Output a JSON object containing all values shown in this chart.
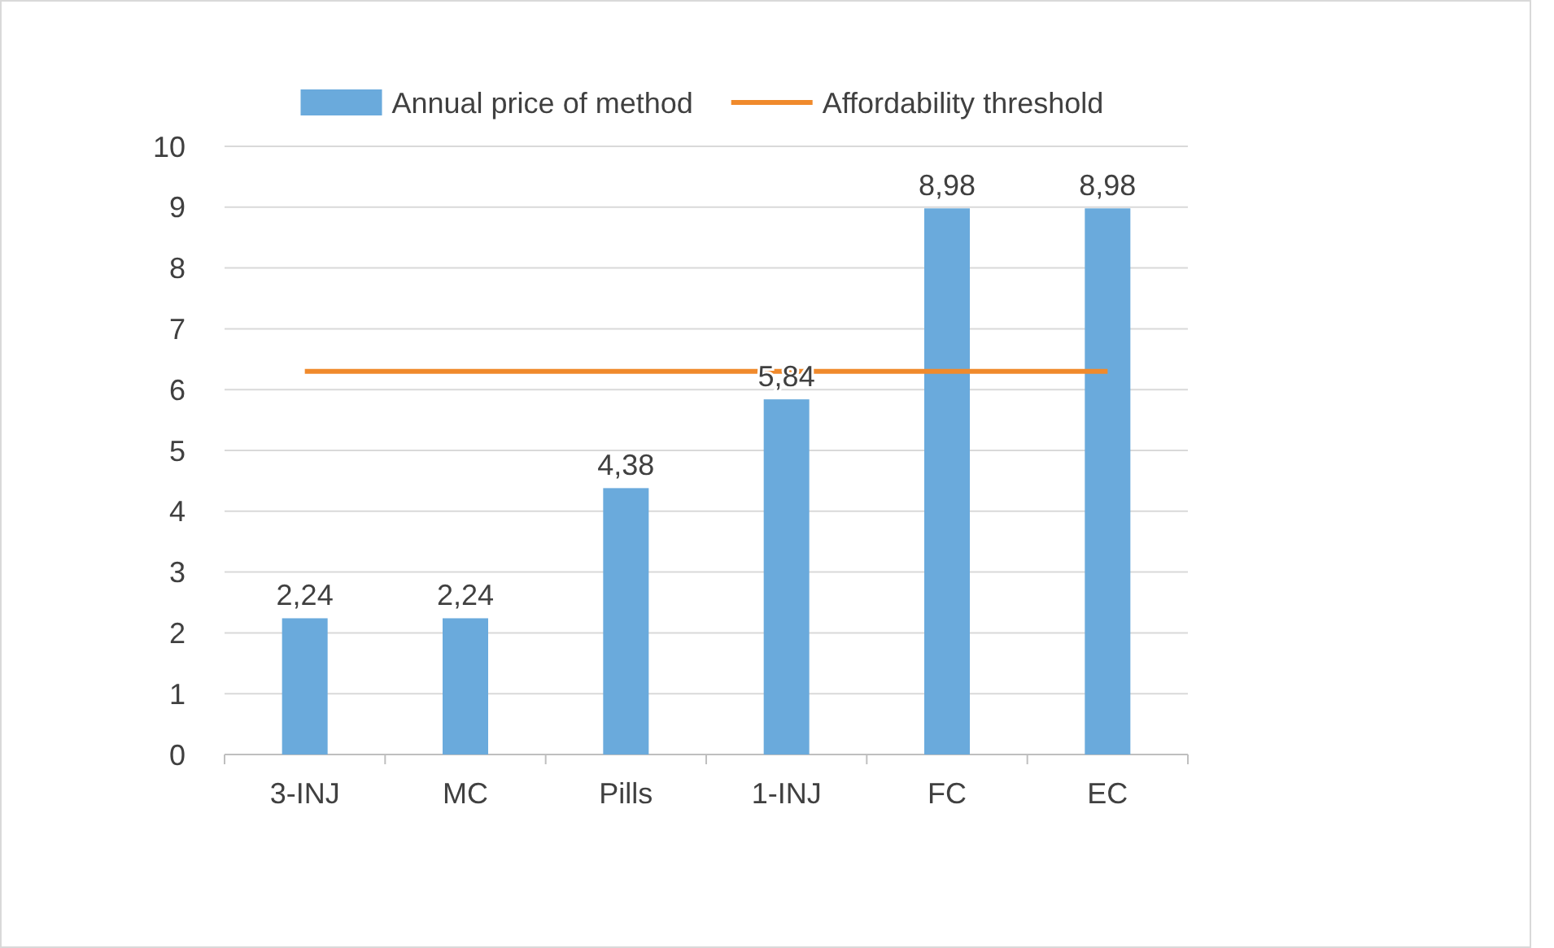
{
  "chart_data": {
    "type": "bar",
    "categories": [
      "3-INJ",
      "MC",
      "Pills",
      "1-INJ",
      "FC",
      "EC"
    ],
    "series": [
      {
        "name": "Annual price of method",
        "color": "#6aaadc",
        "values": [
          2.24,
          2.24,
          4.38,
          5.84,
          8.98,
          8.98
        ],
        "value_labels": [
          "2,24",
          "2,24",
          "4,38",
          "5,84",
          "8,98",
          "8,98"
        ]
      },
      {
        "name": "Affordability threshold",
        "type": "line",
        "color": "#f08a2c",
        "values": [
          6.3,
          6.3,
          6.3,
          6.3,
          6.3,
          6.3
        ]
      }
    ],
    "ylim": [
      0,
      10
    ],
    "yticks": [
      0,
      1,
      2,
      3,
      4,
      5,
      6,
      7,
      8,
      9,
      10
    ],
    "grid": "y",
    "legend": "top",
    "marker": "none",
    "line_style": "solid"
  }
}
